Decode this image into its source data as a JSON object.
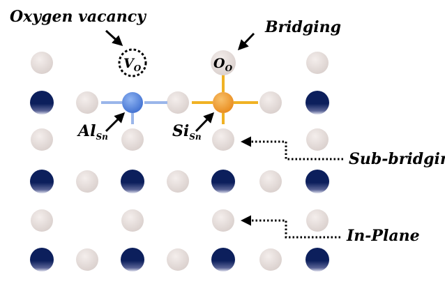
{
  "labels": {
    "oxygen_vacancy": "Oxygen vacancy",
    "bridging": "Bridging",
    "sub_bridging": "Sub-bridging",
    "in_plane": "In-Plane",
    "vacancy_symbol": "V",
    "vacancy_subscript": "O",
    "bridging_symbol": "O",
    "bridging_subscript": "O",
    "al_symbol": "Al",
    "al_subscript": "Sn",
    "si_symbol": "Si",
    "si_subscript": "Sn"
  },
  "colors": {
    "sn_atom": "#0d2260",
    "oxygen_atom": "#e4dcda",
    "al_atom": "#4f7fdb",
    "si_atom": "#ef9b2a",
    "bond_blue": "#3e3fa8",
    "bond_orange": "#e96a1e"
  }
}
